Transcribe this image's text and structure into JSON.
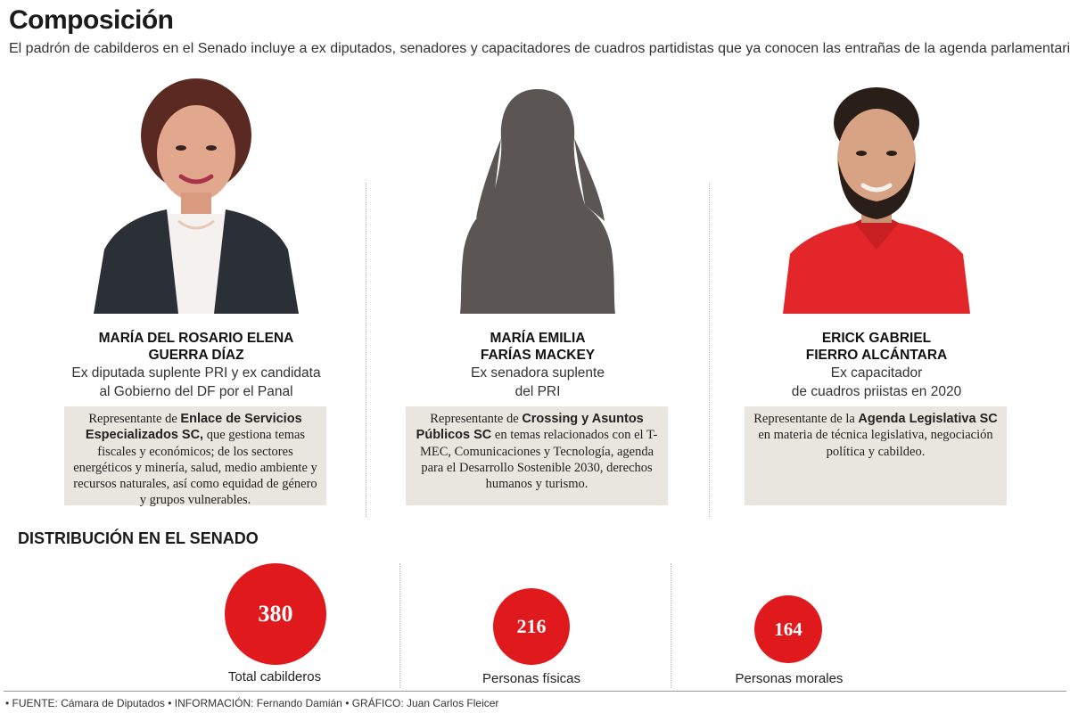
{
  "header": {
    "title": "Composición",
    "subtitle": "El padrón de cabilderos en el Senado incluye a ex diputados, senadores y capacitadores de cuadros partidistas que ya conocen las entrañas de la agenda parlamentaria"
  },
  "people": [
    {
      "name_line1": "MARÍA DEL ROSARIO ELENA",
      "name_line2": "GUERRA DÍAZ",
      "role_line1": "Ex diputada suplente PRI y ex candidata",
      "role_line2": "al Gobierno del DF por el Panal",
      "desc_pre": "Representante de ",
      "desc_bold": "Enlace de Servicios Especializados SC,",
      "desc_post": " que gestiona temas fiscales y económicos; de los sectores energéticos y minería, salud, medio ambiente y recursos naturales, así como equidad de género y grupos vulnerables."
    },
    {
      "name_line1": "MARÍA EMILIA",
      "name_line2": "FARÍAS MACKEY",
      "role_line1": "Ex senadora suplente",
      "role_line2": "del PRI",
      "desc_pre": "Representante de ",
      "desc_bold": "Crossing y Asuntos Públicos SC",
      "desc_post": " en temas relacionados con el T-MEC, Comunicaciones y Tecnología, agenda para el Desarrollo Sostenible 2030, derechos humanos y turismo."
    },
    {
      "name_line1": "ERICK GABRIEL",
      "name_line2": "FIERRO ALCÁNTARA",
      "role_line1": "Ex capacitador",
      "role_line2": "de cuadros priistas en 2020",
      "desc_pre": "Representante de la ",
      "desc_bold": "Agenda Legislativa SC",
      "desc_post": " en materia de técnica legislativa, negociación política y cabildeo."
    }
  ],
  "distribution": {
    "title": "DISTRIBUCIÓN EN EL SENADO",
    "stats": [
      {
        "value": "380",
        "label": "Total cabilderos"
      },
      {
        "value": "216",
        "label": "Personas físicas"
      },
      {
        "value": "164",
        "label": "Personas morales"
      }
    ],
    "circle_color": "#e0191d"
  },
  "footer": {
    "text": "• FUENTE: Cámara de Diputados • INFORMACIÓN: Fernando Damián • GRÁFICO: Juan Carlos Fleicer"
  },
  "icons": {
    "portrait_1": "woman-portrait-photo",
    "portrait_2": "woman-silhouette",
    "portrait_3": "man-portrait-photo"
  }
}
